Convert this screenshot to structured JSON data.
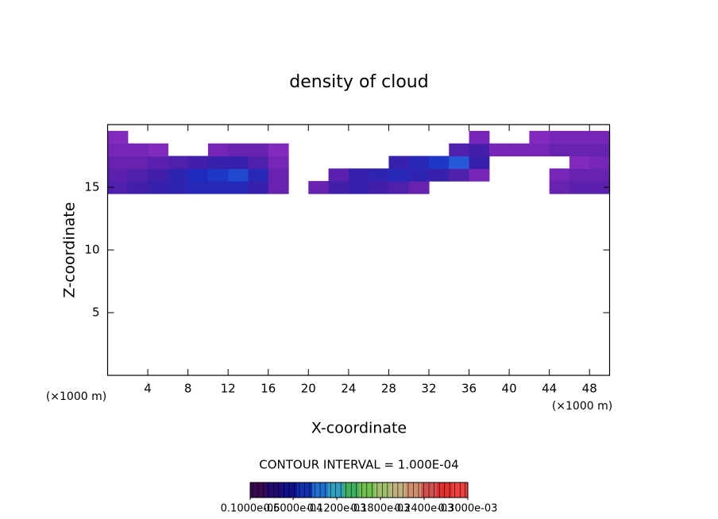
{
  "chart_data": {
    "type": "contour",
    "title": "density of cloud",
    "xlabel": "X-coordinate",
    "ylabel": "Z-coordinate",
    "xunit": "(×1000 m)",
    "yunit": "(×1000 m)",
    "annotation": "CONTOUR INTERVAL = 1.000E-04",
    "xlim": [
      0,
      50
    ],
    "ylim": [
      0,
      20
    ],
    "xticks": [
      4,
      8,
      12,
      16,
      20,
      24,
      28,
      32,
      36,
      40,
      44,
      48
    ],
    "yticks": [
      5,
      10,
      15
    ],
    "x": [
      1,
      3,
      5,
      7,
      9,
      11,
      13,
      15,
      17,
      19,
      21,
      23,
      25,
      27,
      29,
      31,
      33,
      35,
      37,
      39,
      41,
      43,
      45,
      47,
      49
    ],
    "z": [
      15,
      16,
      17,
      18,
      19
    ],
    "values": [
      [
        6e-05,
        7e-05,
        8e-05,
        9e-05,
        0.0001,
        0.0001,
        0.0001,
        8e-05,
        4e-05,
        null,
        4e-05,
        7e-05,
        8e-05,
        7e-05,
        6e-05,
        4e-05,
        null,
        null,
        null,
        null,
        null,
        null,
        4e-05,
        5e-05,
        5e-05
      ],
      [
        5e-05,
        6e-05,
        7e-05,
        9e-05,
        0.00011,
        0.00012,
        0.00013,
        0.0001,
        4e-05,
        null,
        null,
        5e-05,
        8e-05,
        9e-05,
        0.0001,
        9e-05,
        8e-05,
        6e-05,
        3e-05,
        null,
        null,
        null,
        3e-05,
        4e-05,
        4e-05
      ],
      [
        4e-05,
        4e-05,
        5e-05,
        6e-05,
        7e-05,
        8e-05,
        8e-05,
        6e-05,
        3e-05,
        null,
        null,
        null,
        null,
        null,
        8e-05,
        0.0001,
        0.00012,
        0.00014,
        8e-05,
        null,
        null,
        null,
        null,
        2e-05,
        3e-05
      ],
      [
        3e-05,
        3e-05,
        2e-05,
        null,
        null,
        3e-05,
        4e-05,
        4e-05,
        2e-05,
        null,
        null,
        null,
        null,
        null,
        null,
        null,
        null,
        6e-05,
        7e-05,
        3e-05,
        3e-05,
        3e-05,
        4e-05,
        4e-05,
        4e-05
      ],
      [
        2e-05,
        null,
        null,
        null,
        null,
        null,
        null,
        null,
        null,
        null,
        null,
        null,
        null,
        null,
        null,
        null,
        null,
        null,
        3e-05,
        null,
        null,
        2e-05,
        3e-05,
        3e-05,
        3e-05
      ]
    ],
    "clim": [
      1e-06,
      0.0003
    ],
    "colormap": [
      "#9a30d0",
      "#6a22b0",
      "#3a1fa8",
      "#1c2cc0",
      "#2a6ae0"
    ],
    "colorbar_colors": [
      "#3a0a50",
      "#220a70",
      "#10108a",
      "#1030b0",
      "#2070d0",
      "#30a0c0",
      "#40b060",
      "#70c050",
      "#a0c070",
      "#c0b080",
      "#d09070",
      "#d05050",
      "#e03030",
      "#f04040"
    ],
    "colorbar_ticks": [
      {
        "value": 1e-06,
        "label": "0.1000e-05"
      },
      {
        "value": 6e-05,
        "label": "0.6000e-04"
      },
      {
        "value": 0.00012,
        "label": "0.1200e-03"
      },
      {
        "value": 0.00018,
        "label": "0.1800e-03"
      },
      {
        "value": 0.00024,
        "label": "0.2400e-03"
      },
      {
        "value": 0.0003,
        "label": "0.3000e-03"
      }
    ]
  }
}
